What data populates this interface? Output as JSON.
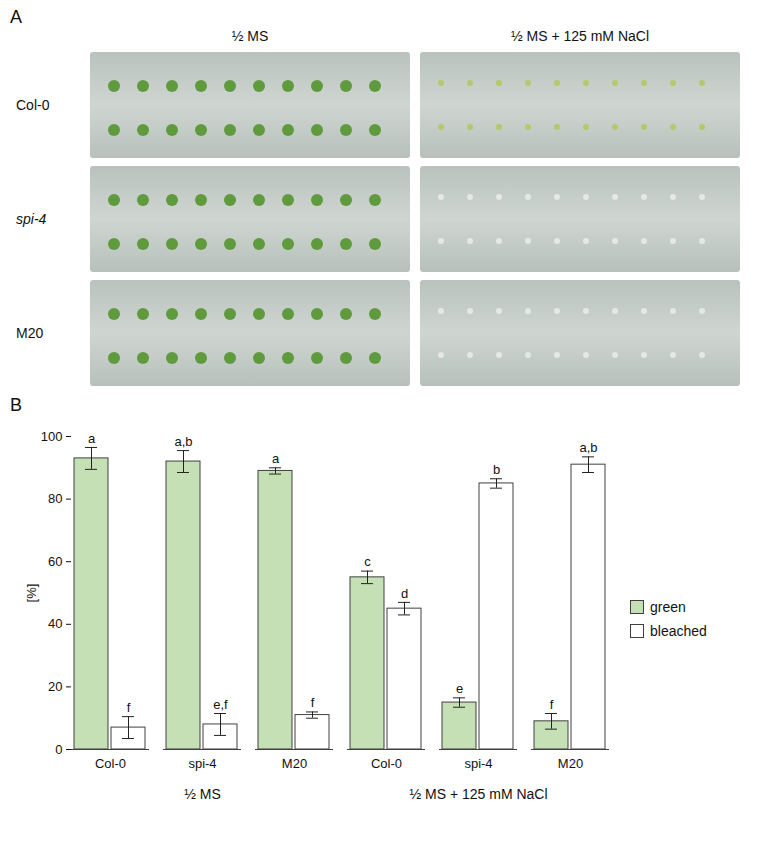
{
  "panel_a": {
    "letter": "A",
    "column_heads": [
      "½ MS",
      "½ MS + 125 mM NaCl"
    ],
    "row_heads": [
      "Col-0",
      "spi-4",
      "M20"
    ]
  },
  "chart_data": {
    "letter": "B",
    "type": "bar",
    "categories": [
      "Col-0",
      "spi-4",
      "M20",
      "Col-0",
      "spi-4",
      "M20"
    ],
    "groups": [
      "½ MS",
      "½ MS",
      "½ MS",
      "½ MS + 125 mM NaCl",
      "½ MS + 125 mM NaCl",
      "½ MS + 125 mM NaCl"
    ],
    "series": [
      {
        "name": "green",
        "color": "#c5e0b4",
        "values": [
          93,
          92,
          89,
          55,
          15,
          9
        ],
        "errors": [
          3.5,
          3.5,
          1,
          2,
          1.5,
          2.5
        ],
        "significance": [
          "a",
          "a,b",
          "a",
          "c",
          "e",
          "f"
        ]
      },
      {
        "name": "bleached",
        "color": "#ffffff",
        "values": [
          7,
          8,
          11,
          45,
          85,
          91
        ],
        "errors": [
          3.5,
          3.5,
          1,
          2,
          1.5,
          2.5
        ],
        "significance": [
          "f",
          "e,f",
          "f",
          "d",
          "b",
          "a,b"
        ]
      }
    ],
    "y_label": "[%]",
    "ylim": [
      0,
      100
    ],
    "yticks": [
      0,
      20,
      40,
      60,
      80,
      100
    ],
    "legend": "right"
  }
}
